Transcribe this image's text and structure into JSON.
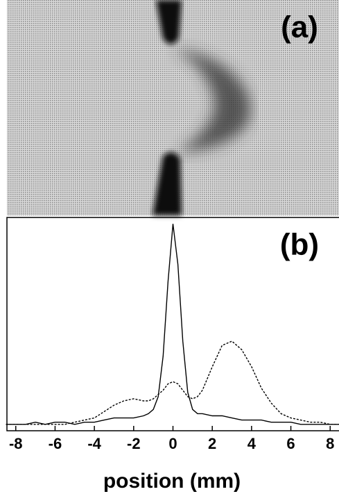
{
  "image_panel": {
    "label": "(a)"
  },
  "chart_data": {
    "type": "line",
    "annotation": "(b)",
    "x_label": "position (mm)",
    "x": [
      -8.5,
      -8,
      -7.5,
      -7,
      -6.5,
      -6,
      -5.5,
      -5,
      -4.5,
      -4,
      -3.5,
      -3,
      -2.5,
      -2,
      -1.5,
      -1.25,
      -1,
      -0.75,
      -0.5,
      -0.25,
      0,
      0.25,
      0.5,
      0.75,
      1,
      1.25,
      1.5,
      2,
      2.5,
      3,
      3.5,
      4,
      4.5,
      5,
      5.5,
      6,
      6.5,
      7,
      7.5,
      8,
      8.5
    ],
    "series": [
      {
        "color": "#000000",
        "line_style": "solid",
        "values": [
          0.03,
          0.03,
          0.03,
          0.04,
          0.03,
          0.04,
          0.04,
          0.03,
          0.04,
          0.04,
          0.05,
          0.06,
          0.06,
          0.06,
          0.07,
          0.08,
          0.1,
          0.16,
          0.35,
          0.7,
          0.97,
          0.78,
          0.42,
          0.18,
          0.1,
          0.08,
          0.08,
          0.07,
          0.07,
          0.06,
          0.05,
          0.05,
          0.05,
          0.04,
          0.04,
          0.04,
          0.03,
          0.03,
          0.03,
          0.03,
          0.03
        ]
      },
      {
        "color": "#000000",
        "line_style": "dashed",
        "values": [
          0.03,
          0.03,
          0.03,
          0.03,
          0.03,
          0.03,
          0.03,
          0.04,
          0.05,
          0.06,
          0.09,
          0.12,
          0.14,
          0.15,
          0.14,
          0.14,
          0.15,
          0.17,
          0.19,
          0.22,
          0.23,
          0.22,
          0.19,
          0.16,
          0.15,
          0.16,
          0.19,
          0.3,
          0.4,
          0.42,
          0.38,
          0.3,
          0.2,
          0.13,
          0.08,
          0.06,
          0.05,
          0.04,
          0.04,
          0.03,
          0.03
        ]
      }
    ],
    "xlim": [
      -8.45,
      8.45
    ],
    "ylim": [
      0,
      1
    ],
    "xticks": [
      -8,
      -6,
      -4,
      -2,
      0,
      2,
      4,
      6,
      8
    ]
  }
}
